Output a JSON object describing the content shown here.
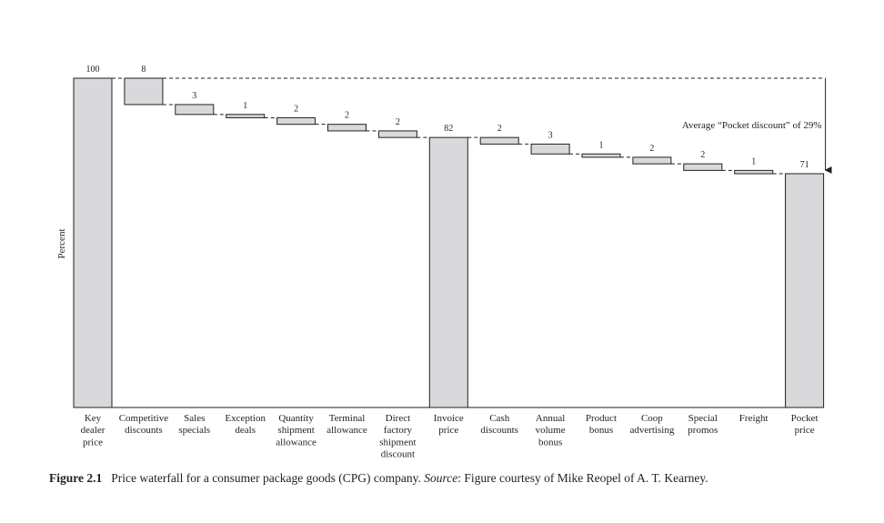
{
  "chart_data": {
    "type": "waterfall",
    "ylabel": "Percent",
    "ylim": [
      0,
      100
    ],
    "bars": [
      {
        "label": [
          "Key",
          "dealer",
          "price"
        ],
        "value": 100,
        "kind": "total"
      },
      {
        "label": [
          "Competitive",
          "discounts"
        ],
        "value": 8,
        "kind": "decrement"
      },
      {
        "label": [
          "Sales",
          "specials"
        ],
        "value": 3,
        "kind": "decrement"
      },
      {
        "label": [
          "Exception",
          "deals"
        ],
        "value": 1,
        "kind": "decrement"
      },
      {
        "label": [
          "Quantity",
          "shipment",
          "allowance"
        ],
        "value": 2,
        "kind": "decrement"
      },
      {
        "label": [
          "Terminal",
          "allowance"
        ],
        "value": 2,
        "kind": "decrement"
      },
      {
        "label": [
          "Direct",
          "factory",
          "shipment",
          "discount"
        ],
        "value": 2,
        "kind": "decrement"
      },
      {
        "label": [
          "Invoice",
          "price"
        ],
        "value": 82,
        "kind": "total"
      },
      {
        "label": [
          "Cash",
          "discounts"
        ],
        "value": 2,
        "kind": "decrement"
      },
      {
        "label": [
          "Annual",
          "volume",
          "bonus"
        ],
        "value": 3,
        "kind": "decrement"
      },
      {
        "label": [
          "Product",
          "bonus"
        ],
        "value": 1,
        "kind": "decrement"
      },
      {
        "label": [
          "Coop",
          "advertising"
        ],
        "value": 2,
        "kind": "decrement"
      },
      {
        "label": [
          "Special",
          "promos"
        ],
        "value": 2,
        "kind": "decrement"
      },
      {
        "label": [
          "Freight"
        ],
        "value": 1,
        "kind": "decrement"
      },
      {
        "label": [
          "Pocket",
          "price"
        ],
        "value": 71,
        "kind": "total"
      }
    ],
    "annotation": "Average “Pocket discount” of 29%",
    "colors": {
      "bar_fill": "#d9d9db",
      "stroke": "#231f20"
    }
  },
  "caption": {
    "figure_number": "Figure 2.1",
    "text": "Price waterfall for a consumer package goods (CPG) company.",
    "source_label": "Source",
    "source_text": ": Figure courtesy of Mike Reopel of A. T. Kearney."
  }
}
